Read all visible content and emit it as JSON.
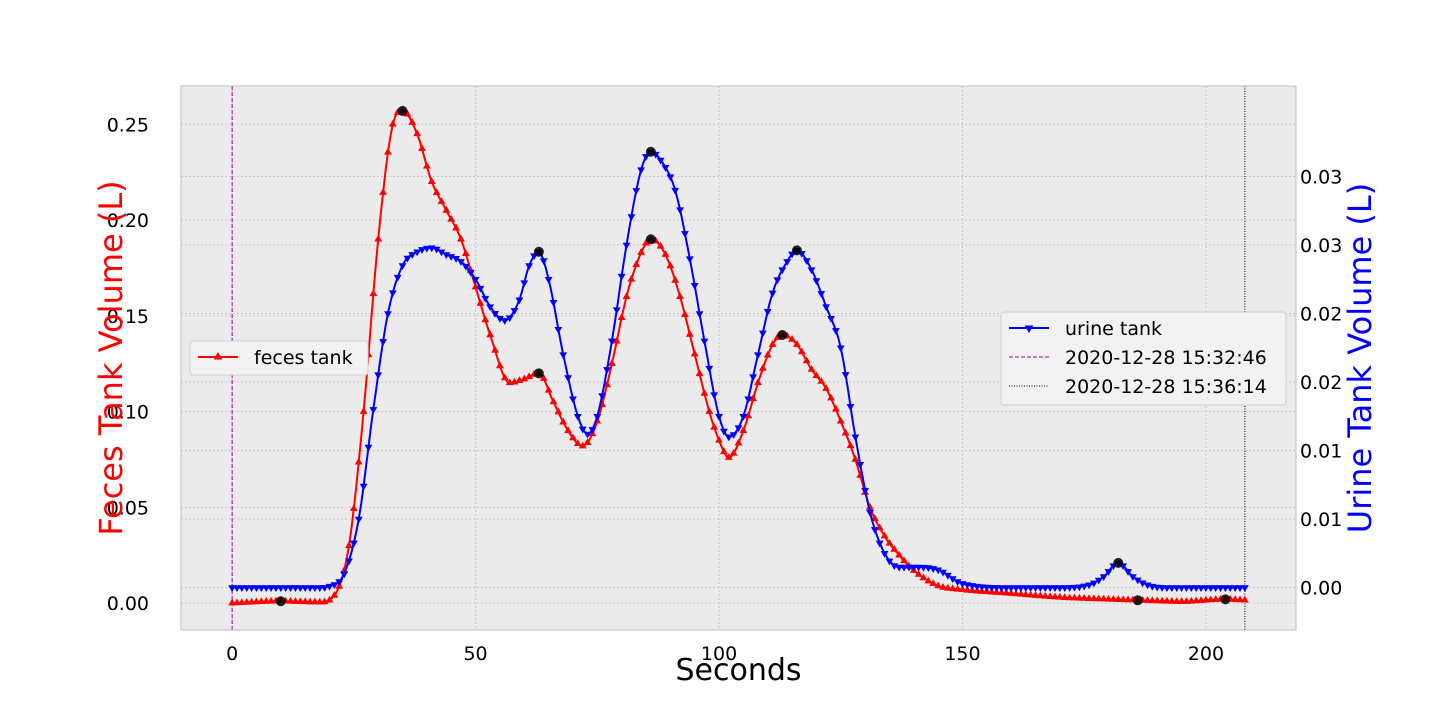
{
  "chart_data": {
    "type": "line",
    "xlabel": "Seconds",
    "ylabel_left": "Feces Tank Volume (L)",
    "ylabel_right": "Urine Tank Volume (L)",
    "xlim": [
      -10.5,
      218.5
    ],
    "ylim_left": [
      -0.014,
      0.27
    ],
    "ylim_right": [
      -0.0031,
      0.0366
    ],
    "x_ticks": [
      0,
      50,
      100,
      150,
      200
    ],
    "y_left_ticks": [
      0.0,
      0.05,
      0.1,
      0.15,
      0.2,
      0.25
    ],
    "y_left_tick_labels": [
      "0.00",
      "0.05",
      "0.10",
      "0.15",
      "0.20",
      "0.25"
    ],
    "y_right_ticks": [
      0.0,
      0.005,
      0.01,
      0.015,
      0.02,
      0.025,
      0.03
    ],
    "y_right_tick_labels": [
      "0.00",
      "0.01",
      "0.01",
      "0.02",
      "0.02",
      "0.03",
      "0.03"
    ],
    "colors": {
      "feces": "#ff0000",
      "urine": "#0000ff",
      "start": "#a000a0",
      "end": "#000000",
      "peak": "#000000",
      "plot_bg": "#ebebeb",
      "grid": "#c8c8c8"
    },
    "series": [
      {
        "name": "feces tank",
        "axis": "left",
        "marker": "triangle-up",
        "points": [
          [
            0,
            0
          ],
          [
            10,
            0.001
          ],
          [
            18,
            0.0005
          ],
          [
            21,
            0.004
          ],
          [
            24,
            0.03
          ],
          [
            27,
            0.1
          ],
          [
            30,
            0.19
          ],
          [
            33,
            0.25
          ],
          [
            35,
            0.257
          ],
          [
            38,
            0.245
          ],
          [
            41,
            0.22
          ],
          [
            44,
            0.205
          ],
          [
            47,
            0.19
          ],
          [
            50,
            0.165
          ],
          [
            53,
            0.14
          ],
          [
            57,
            0.115
          ],
          [
            60,
            0.117
          ],
          [
            63,
            0.12
          ],
          [
            66,
            0.105
          ],
          [
            69,
            0.09
          ],
          [
            72,
            0.082
          ],
          [
            75,
            0.095
          ],
          [
            78,
            0.125
          ],
          [
            81,
            0.16
          ],
          [
            84,
            0.183
          ],
          [
            86,
            0.19
          ],
          [
            89,
            0.182
          ],
          [
            92,
            0.16
          ],
          [
            95,
            0.13
          ],
          [
            98,
            0.1
          ],
          [
            100,
            0.085
          ],
          [
            102,
            0.076
          ],
          [
            105,
            0.09
          ],
          [
            108,
            0.115
          ],
          [
            111,
            0.135
          ],
          [
            113,
            0.14
          ],
          [
            116,
            0.135
          ],
          [
            119,
            0.122
          ],
          [
            122,
            0.112
          ],
          [
            125,
            0.095
          ],
          [
            128,
            0.075
          ],
          [
            131,
            0.05
          ],
          [
            134,
            0.035
          ],
          [
            137,
            0.025
          ],
          [
            140,
            0.017
          ],
          [
            145,
            0.009
          ],
          [
            150,
            0.007
          ],
          [
            160,
            0.005
          ],
          [
            170,
            0.003
          ],
          [
            180,
            0.002
          ],
          [
            186,
            0.0015
          ],
          [
            195,
            0.0008
          ],
          [
            204,
            0.002
          ],
          [
            208,
            0.0015
          ]
        ]
      },
      {
        "name": "urine tank",
        "axis": "right",
        "marker": "triangle-down",
        "points": [
          [
            0,
            0
          ],
          [
            18,
            0
          ],
          [
            20,
            0.0001
          ],
          [
            23,
            0.001
          ],
          [
            26,
            0.005
          ],
          [
            29,
            0.013
          ],
          [
            32,
            0.02
          ],
          [
            35,
            0.0235
          ],
          [
            38,
            0.0245
          ],
          [
            41,
            0.0248
          ],
          [
            44,
            0.0243
          ],
          [
            47,
            0.0238
          ],
          [
            50,
            0.0225
          ],
          [
            53,
            0.0205
          ],
          [
            56,
            0.0195
          ],
          [
            59,
            0.021
          ],
          [
            61,
            0.0235
          ],
          [
            63,
            0.0245
          ],
          [
            65,
            0.0225
          ],
          [
            68,
            0.017
          ],
          [
            71,
            0.0125
          ],
          [
            73,
            0.0112
          ],
          [
            75,
            0.0125
          ],
          [
            78,
            0.018
          ],
          [
            81,
            0.025
          ],
          [
            84,
            0.0305
          ],
          [
            86,
            0.0318
          ],
          [
            88,
            0.0312
          ],
          [
            91,
            0.029
          ],
          [
            94,
            0.024
          ],
          [
            97,
            0.018
          ],
          [
            100,
            0.0125
          ],
          [
            102,
            0.011
          ],
          [
            105,
            0.0125
          ],
          [
            108,
            0.017
          ],
          [
            111,
            0.0215
          ],
          [
            114,
            0.0238
          ],
          [
            116,
            0.0246
          ],
          [
            119,
            0.0232
          ],
          [
            122,
            0.0205
          ],
          [
            125,
            0.0175
          ],
          [
            128,
            0.011
          ],
          [
            131,
            0.0055
          ],
          [
            134,
            0.0025
          ],
          [
            137,
            0.0015
          ],
          [
            140,
            0.0015
          ],
          [
            145,
            0.0013
          ],
          [
            150,
            0.0003
          ],
          [
            160,
            0
          ],
          [
            170,
            0
          ],
          [
            176,
            0.0002
          ],
          [
            179,
            0.0008
          ],
          [
            182,
            0.0018
          ],
          [
            185,
            0.0008
          ],
          [
            188,
            0.0002
          ],
          [
            192,
            0
          ],
          [
            200,
            0
          ],
          [
            208,
            0
          ]
        ]
      }
    ],
    "peaks": {
      "feces": [
        [
          10,
          0.001
        ],
        [
          35,
          0.257
        ],
        [
          63,
          0.12
        ],
        [
          86,
          0.19
        ],
        [
          113,
          0.14
        ],
        [
          186,
          0.0015
        ],
        [
          204,
          0.002
        ]
      ],
      "urine": [
        [
          63,
          0.0245
        ],
        [
          86,
          0.0318
        ],
        [
          116,
          0.0246
        ],
        [
          182,
          0.0018
        ]
      ]
    },
    "vlines": [
      {
        "x": 0,
        "label": "2020-12-28 15:32:46",
        "style": "dashed"
      },
      {
        "x": 208,
        "label": "2020-12-28 15:36:14",
        "style": "dotted"
      }
    ],
    "legend_left": {
      "label": "feces tank",
      "placement": "center-left"
    },
    "legend_right": {
      "labels": [
        "urine tank",
        "2020-12-28 15:32:46",
        "2020-12-28 15:36:14"
      ],
      "placement": "center-right"
    }
  }
}
